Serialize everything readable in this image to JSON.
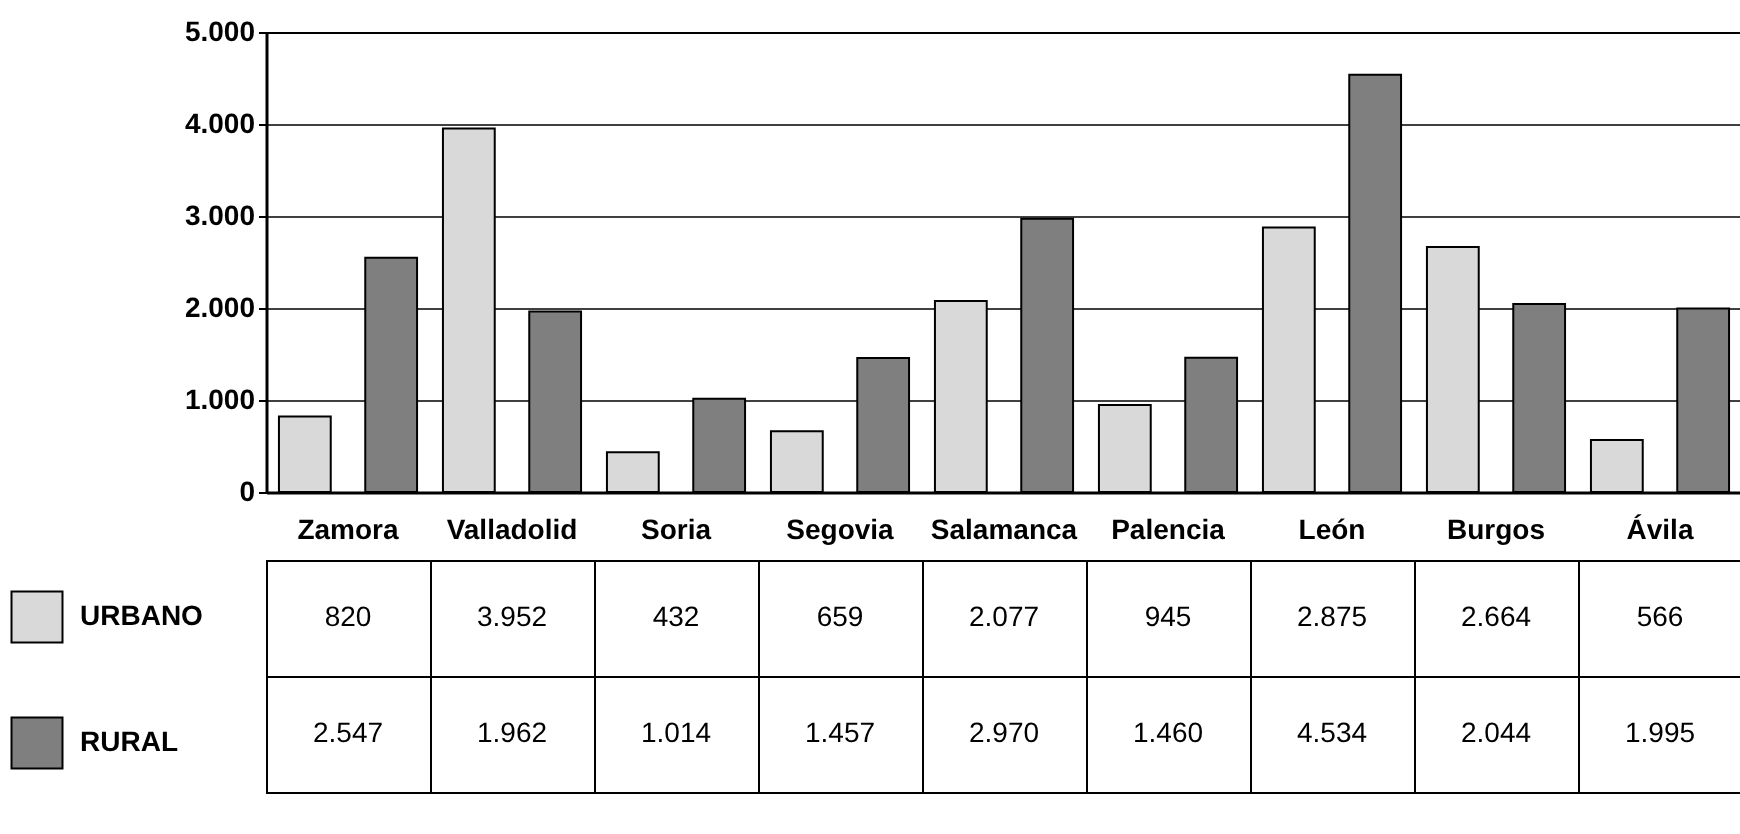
{
  "chart_data": {
    "type": "bar",
    "categories": [
      "Zamora",
      "Valladolid",
      "Soria",
      "Segovia",
      "Salamanca",
      "Palencia",
      "León",
      "Burgos",
      "Ávila"
    ],
    "series": [
      {
        "name": "URBANO",
        "color": "#d9d9d9",
        "values": [
          820,
          3952,
          432,
          659,
          2077,
          945,
          2875,
          2664,
          566
        ],
        "value_labels": [
          "820",
          "3.952",
          "432",
          "659",
          "2.077",
          "945",
          "2.875",
          "2.664",
          "566"
        ]
      },
      {
        "name": "RURAL",
        "color": "#7f7f7f",
        "values": [
          2547,
          1962,
          1014,
          1457,
          2970,
          1460,
          4534,
          2044,
          1995
        ],
        "value_labels": [
          "2.547",
          "1.962",
          "1.014",
          "1.457",
          "2.970",
          "1.460",
          "4.534",
          "2.044",
          "1.995"
        ]
      }
    ],
    "ylim": [
      0,
      5000
    ],
    "yticks": [
      0,
      {
        "value": 1000,
        "label": "1.000"
      },
      {
        "value": 2000,
        "label": "2.000"
      },
      {
        "value": 3000,
        "label": "3.000"
      },
      {
        "value": 4000,
        "label": "4.000"
      },
      {
        "value": 5000,
        "label": "5.000"
      }
    ],
    "grid": "y",
    "legend": "bottom left"
  }
}
